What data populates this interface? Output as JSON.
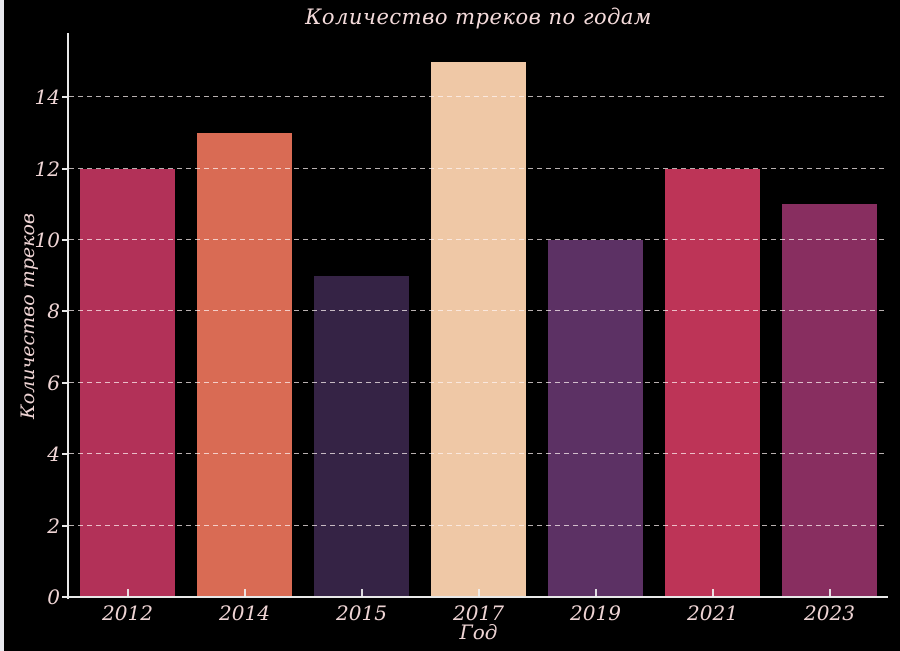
{
  "page": {
    "background_color": "#000000",
    "edge_strip_color": "#e9e9ee"
  },
  "chart_data": {
    "type": "bar",
    "title": "Количество треков по годам",
    "xlabel": "Год",
    "ylabel": "Количество треков",
    "categories": [
      "2012",
      "2014",
      "2015",
      "2017",
      "2019",
      "2021",
      "2023"
    ],
    "values": [
      12,
      13,
      9,
      15,
      10,
      12,
      11
    ],
    "bar_colors": [
      "#b23158",
      "#d96b54",
      "#352345",
      "#efc8a6",
      "#5c3164",
      "#bd3457",
      "#882e60"
    ],
    "ylim": [
      0,
      15.8
    ],
    "yticks": [
      0,
      2,
      4,
      6,
      8,
      10,
      12,
      14
    ],
    "grid": "horizontal dashed, drawn above bars",
    "legend": "none",
    "text_color": "#eed4d4",
    "title_color": "#f3dada",
    "axis_color": "#e8e8e8",
    "gridline_color": "rgba(255,244,244,0.72)"
  }
}
